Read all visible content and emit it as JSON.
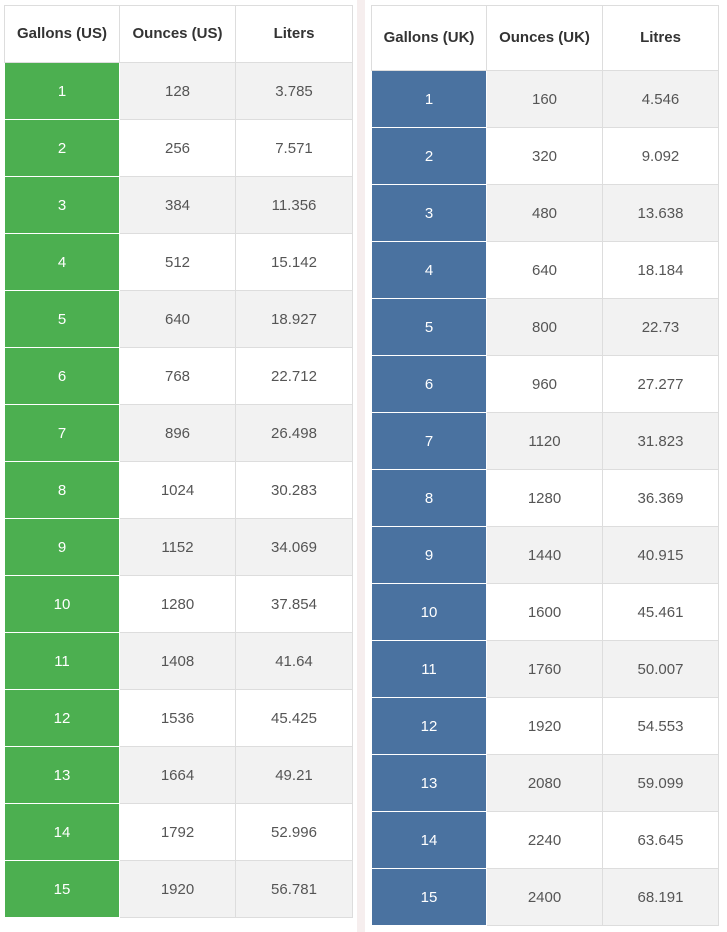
{
  "colors": {
    "us_accent": "#4caf50",
    "uk_accent": "#4a72a0"
  },
  "us_table": {
    "headers": [
      "Gallons (US)",
      "Ounces (US)",
      "Liters"
    ],
    "rows": [
      [
        "1",
        "128",
        "3.785"
      ],
      [
        "2",
        "256",
        "7.571"
      ],
      [
        "3",
        "384",
        "11.356"
      ],
      [
        "4",
        "512",
        "15.142"
      ],
      [
        "5",
        "640",
        "18.927"
      ],
      [
        "6",
        "768",
        "22.712"
      ],
      [
        "7",
        "896",
        "26.498"
      ],
      [
        "8",
        "1024",
        "30.283"
      ],
      [
        "9",
        "1152",
        "34.069"
      ],
      [
        "10",
        "1280",
        "37.854"
      ],
      [
        "11",
        "1408",
        "41.64"
      ],
      [
        "12",
        "1536",
        "45.425"
      ],
      [
        "13",
        "1664",
        "49.21"
      ],
      [
        "14",
        "1792",
        "52.996"
      ],
      [
        "15",
        "1920",
        "56.781"
      ]
    ]
  },
  "uk_table": {
    "headers": [
      "Gallons (UK)",
      "Ounces (UK)",
      "Litres"
    ],
    "rows": [
      [
        "1",
        "160",
        "4.546"
      ],
      [
        "2",
        "320",
        "9.092"
      ],
      [
        "3",
        "480",
        "13.638"
      ],
      [
        "4",
        "640",
        "18.184"
      ],
      [
        "5",
        "800",
        "22.73"
      ],
      [
        "6",
        "960",
        "27.277"
      ],
      [
        "7",
        "1120",
        "31.823"
      ],
      [
        "8",
        "1280",
        "36.369"
      ],
      [
        "9",
        "1440",
        "40.915"
      ],
      [
        "10",
        "1600",
        "45.461"
      ],
      [
        "11",
        "1760",
        "50.007"
      ],
      [
        "12",
        "1920",
        "54.553"
      ],
      [
        "13",
        "2080",
        "59.099"
      ],
      [
        "14",
        "2240",
        "63.645"
      ],
      [
        "15",
        "2400",
        "68.191"
      ]
    ]
  }
}
